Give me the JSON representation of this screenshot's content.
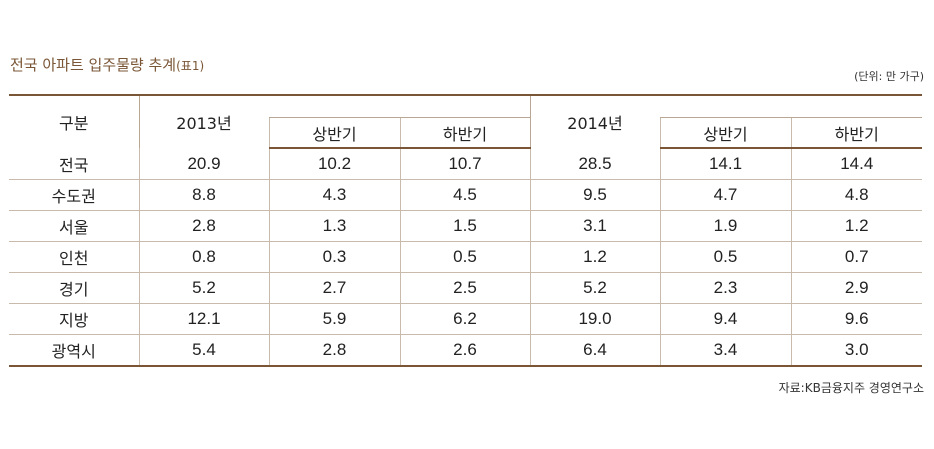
{
  "title": "전국 아파트 입주물량 추계",
  "title_suffix": "(표1)",
  "unit_note": "(단위: 만 가구)",
  "source_note": "자료:KB금융지주 경영연구소",
  "columns": {
    "category": "구분",
    "year1": "2013년",
    "year2": "2014년",
    "half1": "상반기",
    "half2": "하반기"
  },
  "rows": [
    {
      "label": "전국",
      "y1": "20.9",
      "y1h1": "10.2",
      "y1h2": "10.7",
      "y2": "28.5",
      "y2h1": "14.1",
      "y2h2": "14.4"
    },
    {
      "label": "수도권",
      "y1": "8.8",
      "y1h1": "4.3",
      "y1h2": "4.5",
      "y2": "9.5",
      "y2h1": "4.7",
      "y2h2": "4.8"
    },
    {
      "label": "서울",
      "y1": "2.8",
      "y1h1": "1.3",
      "y1h2": "1.5",
      "y2": "3.1",
      "y2h1": "1.9",
      "y2h2": "1.2"
    },
    {
      "label": "인천",
      "y1": "0.8",
      "y1h1": "0.3",
      "y1h2": "0.5",
      "y2": "1.2",
      "y2h1": "0.5",
      "y2h2": "0.7"
    },
    {
      "label": "경기",
      "y1": "5.2",
      "y1h1": "2.7",
      "y1h2": "2.5",
      "y2": "5.2",
      "y2h1": "2.3",
      "y2h2": "2.9"
    },
    {
      "label": "지방",
      "y1": "12.1",
      "y1h1": "5.9",
      "y1h2": "6.2",
      "y2": "19.0",
      "y2h1": "9.4",
      "y2h2": "9.6"
    },
    {
      "label": "광역시",
      "y1": "5.4",
      "y1h1": "2.8",
      "y1h2": "2.6",
      "y2": "6.4",
      "y2h1": "3.4",
      "y2h2": "3.0"
    }
  ]
}
